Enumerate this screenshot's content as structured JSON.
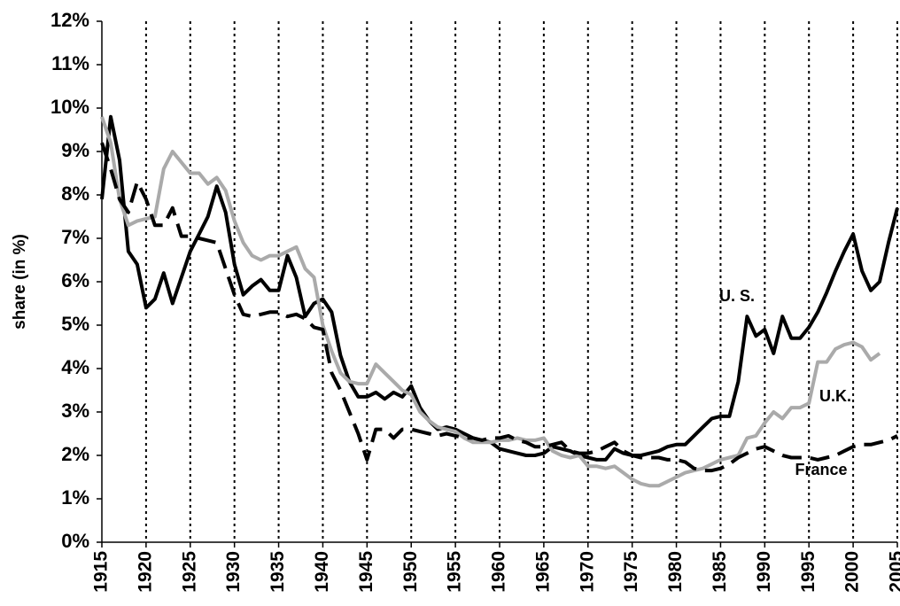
{
  "chart_data": {
    "type": "line",
    "y_label": "share (in %)",
    "x": [
      1915,
      1916,
      1917,
      1918,
      1919,
      1920,
      1921,
      1922,
      1923,
      1924,
      1925,
      1926,
      1927,
      1928,
      1929,
      1930,
      1931,
      1932,
      1933,
      1934,
      1935,
      1936,
      1937,
      1938,
      1939,
      1940,
      1941,
      1942,
      1943,
      1944,
      1945,
      1946,
      1947,
      1948,
      1949,
      1950,
      1951,
      1952,
      1953,
      1954,
      1955,
      1956,
      1957,
      1958,
      1959,
      1960,
      1961,
      1962,
      1963,
      1964,
      1965,
      1966,
      1967,
      1968,
      1969,
      1970,
      1971,
      1972,
      1973,
      1974,
      1975,
      1976,
      1977,
      1978,
      1979,
      1980,
      1981,
      1982,
      1983,
      1984,
      1985,
      1986,
      1987,
      1988,
      1989,
      1990,
      1991,
      1992,
      1993,
      1994,
      1995,
      1996,
      1997,
      1998,
      1999,
      2000,
      2001,
      2002,
      2003,
      2004,
      2005
    ],
    "series": [
      {
        "name": "U. S.",
        "color": "#000000",
        "dash": "none",
        "values": [
          7.9,
          9.8,
          8.8,
          6.7,
          6.4,
          5.4,
          5.6,
          6.2,
          5.5,
          6.1,
          6.7,
          7.1,
          7.5,
          8.2,
          7.6,
          6.4,
          5.7,
          5.9,
          6.05,
          5.8,
          5.8,
          6.6,
          6.1,
          5.2,
          5.5,
          5.6,
          5.3,
          4.3,
          3.7,
          3.35,
          3.35,
          3.45,
          3.3,
          3.45,
          3.35,
          3.6,
          3.1,
          2.8,
          2.6,
          2.65,
          2.6,
          2.5,
          2.4,
          2.35,
          2.3,
          2.15,
          2.1,
          2.05,
          2.0,
          2.0,
          2.05,
          2.2,
          2.15,
          2.1,
          2.0,
          1.95,
          1.9,
          1.9,
          2.15,
          2.05,
          2.0,
          2.0,
          2.05,
          2.1,
          2.2,
          2.25,
          2.25,
          2.45,
          2.65,
          2.85,
          2.9,
          2.9,
          3.7,
          5.2,
          4.75,
          4.9,
          4.35,
          5.2,
          4.7,
          4.7,
          4.95,
          5.3,
          5.75,
          6.25,
          6.7,
          7.1,
          6.25,
          5.8,
          6.0,
          6.9,
          7.7
        ]
      },
      {
        "name": "U.K.",
        "color": "#aaaaaa",
        "dash": "none",
        "values": [
          9.8,
          9.2,
          7.9,
          7.3,
          7.4,
          7.45,
          7.5,
          8.6,
          9.0,
          8.75,
          8.5,
          8.5,
          8.25,
          8.4,
          8.1,
          7.4,
          6.9,
          6.6,
          6.5,
          6.6,
          6.6,
          6.7,
          6.8,
          6.3,
          6.1,
          5.0,
          4.4,
          3.9,
          3.7,
          3.65,
          3.65,
          4.1,
          3.9,
          3.7,
          3.5,
          3.4,
          3.0,
          2.8,
          2.65,
          2.6,
          2.55,
          2.4,
          2.3,
          2.3,
          2.3,
          2.35,
          2.35,
          2.4,
          2.35,
          2.35,
          2.4,
          2.1,
          2.0,
          1.95,
          2.0,
          1.75,
          1.75,
          1.7,
          1.75,
          1.6,
          1.45,
          1.35,
          1.3,
          1.3,
          1.4,
          1.5,
          1.6,
          1.65,
          1.7,
          1.8,
          1.9,
          1.95,
          2.0,
          2.4,
          2.45,
          2.75,
          3.0,
          2.85,
          3.1,
          3.1,
          3.2,
          4.15,
          4.15,
          4.45,
          4.55,
          4.6,
          4.5,
          4.2,
          4.35,
          null,
          null
        ]
      },
      {
        "name": "France",
        "color": "#000000",
        "dash": "22,10",
        "values": [
          9.2,
          8.6,
          7.9,
          7.6,
          8.3,
          7.9,
          7.3,
          7.3,
          7.7,
          7.05,
          7.05,
          7.0,
          6.95,
          6.9,
          6.3,
          5.7,
          5.25,
          5.2,
          5.25,
          5.3,
          5.3,
          5.2,
          5.25,
          5.15,
          4.95,
          4.9,
          3.9,
          3.5,
          3.0,
          2.5,
          1.9,
          2.6,
          2.6,
          2.4,
          2.6,
          2.6,
          2.55,
          2.5,
          2.45,
          2.5,
          2.45,
          2.4,
          2.4,
          2.35,
          2.4,
          2.4,
          2.45,
          2.35,
          2.3,
          2.2,
          2.2,
          2.25,
          2.3,
          2.1,
          2.05,
          2.05,
          2.1,
          2.2,
          2.3,
          2.1,
          2.0,
          1.95,
          1.95,
          1.95,
          1.9,
          1.9,
          1.85,
          1.7,
          1.65,
          1.65,
          1.7,
          1.8,
          1.95,
          2.05,
          2.15,
          2.2,
          2.1,
          2.0,
          1.95,
          1.95,
          1.95,
          1.9,
          1.95,
          2.0,
          2.1,
          2.2,
          2.25,
          2.25,
          2.3,
          2.35,
          2.45
        ]
      }
    ],
    "xlim": [
      1915,
      2005
    ],
    "xticks": [
      1915,
      1920,
      1925,
      1930,
      1935,
      1940,
      1945,
      1950,
      1955,
      1960,
      1965,
      1970,
      1975,
      1980,
      1985,
      1990,
      1995,
      2000,
      2005
    ],
    "ylim": [
      0,
      12
    ],
    "yticks": [
      {
        "value": 0,
        "label": "0%"
      },
      {
        "value": 1,
        "label": "1%"
      },
      {
        "value": 2,
        "label": "2%"
      },
      {
        "value": 3,
        "label": "3%"
      },
      {
        "value": 4,
        "label": "4%"
      },
      {
        "value": 5,
        "label": "5%"
      },
      {
        "value": 6,
        "label": "6%"
      },
      {
        "value": 7,
        "label": "7%"
      },
      {
        "value": 8,
        "label": "8%"
      },
      {
        "value": 9,
        "label": "9%"
      },
      {
        "value": 10,
        "label": "10%"
      },
      {
        "value": 11,
        "label": "11%"
      },
      {
        "value": 12,
        "label": "12%"
      }
    ],
    "grid": true
  }
}
